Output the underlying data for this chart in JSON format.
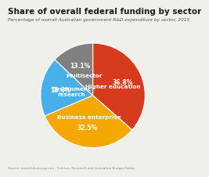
{
  "title": "Share of overall federal funding by sector",
  "subtitle": "Percentage of overall Australian government R&D expenditure by sector, 2015",
  "source": "Source: www.industry.gov.au - Science, Research and Innovation Budget Tables",
  "sectors": [
    "Higher education",
    "Business enterprise",
    "Government\nresearch",
    "Multisector"
  ],
  "values": [
    36.8,
    32.5,
    18.6,
    13.1
  ],
  "labels_pct": [
    "36.8%",
    "32.5%",
    "18.6%",
    "13.1%"
  ],
  "colors": [
    "#d73b1e",
    "#f5a800",
    "#47b0e8",
    "#808080"
  ],
  "startangle": 90,
  "background_color": "#f0f0eb",
  "title_fontsize": 7.5,
  "subtitle_fontsize": 4.2,
  "label_fontsize": 5.2,
  "pct_fontsize": 5.5,
  "source_fontsize": 3.0
}
